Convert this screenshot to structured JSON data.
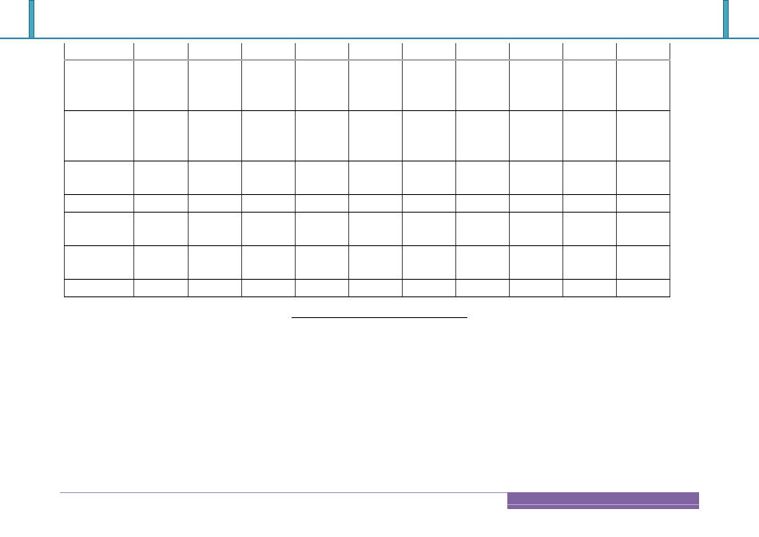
{
  "colors": {
    "header_accent": "#2e8aa6",
    "footer_accent": "#8064a2"
  },
  "table": {
    "rows": [
      [
        "",
        "",
        "",
        "",
        "",
        "",
        "",
        "",
        "",
        "",
        ""
      ],
      [
        "",
        "",
        "",
        "",
        "",
        "",
        "",
        "",
        "",
        "",
        ""
      ],
      [
        "",
        "",
        "",
        "",
        "",
        "",
        "",
        "",
        "",
        "",
        ""
      ],
      [
        "",
        "",
        "",
        "",
        "",
        "",
        "",
        "",
        "",
        "",
        ""
      ],
      [
        "",
        "",
        "",
        "",
        "",
        "",
        "",
        "",
        "",
        "",
        ""
      ],
      [
        "",
        "",
        "",
        "",
        "",
        "",
        "",
        "",
        "",
        "",
        ""
      ],
      [
        "",
        "",
        "",
        "",
        "",
        "",
        "",
        "",
        "",
        "",
        ""
      ],
      [
        "",
        "",
        "",
        "",
        "",
        "",
        "",
        "",
        "",
        "",
        ""
      ]
    ]
  }
}
